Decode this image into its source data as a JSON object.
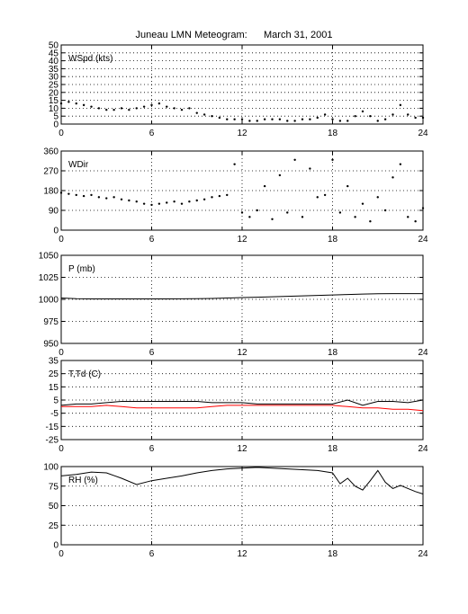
{
  "figure": {
    "title_left": "Juneau LMN Meteogram:",
    "title_right": "March 31, 2001"
  },
  "chart_data": [
    {
      "type": "scatter",
      "panel_label": "WSpd (kts)",
      "x": [
        0,
        0.5,
        1,
        1.5,
        2,
        2.5,
        3,
        3.5,
        4,
        4.5,
        5,
        5.5,
        6,
        6.5,
        7,
        7.5,
        8,
        8.5,
        9,
        9.5,
        10,
        10.5,
        11,
        11.5,
        12,
        12.5,
        13,
        13.5,
        14,
        14.5,
        15,
        15.5,
        16,
        16.5,
        17,
        17.5,
        18,
        18.5,
        19,
        19.5,
        20,
        20.5,
        21,
        21.5,
        22,
        22.5,
        23,
        23.5,
        24
      ],
      "series": [
        {
          "values": [
            13,
            14,
            13,
            12,
            11,
            10,
            9,
            9,
            10,
            9,
            10,
            11,
            12,
            13,
            11,
            10,
            9,
            10,
            7,
            6,
            5,
            4,
            3,
            3,
            3,
            2,
            2,
            3,
            3,
            3,
            2,
            2,
            3,
            3,
            4,
            6,
            3,
            2,
            2,
            5,
            8,
            5,
            2,
            3,
            6,
            12,
            6,
            4,
            4
          ],
          "color": "#000000"
        }
      ],
      "xlim": [
        0,
        24
      ],
      "ylim": [
        0,
        50
      ],
      "xticks": [
        "0",
        "6",
        "12",
        "18",
        "24"
      ],
      "yticks": [
        "0",
        "5",
        "10",
        "15",
        "20",
        "25",
        "30",
        "35",
        "40",
        "45",
        "50"
      ],
      "grid": true
    },
    {
      "type": "scatter",
      "panel_label": "WDir",
      "x": [
        0,
        0.5,
        1,
        1.5,
        2,
        2.5,
        3,
        3.5,
        4,
        4.5,
        5,
        5.5,
        6,
        6.5,
        7,
        7.5,
        8,
        8.5,
        9,
        9.5,
        10,
        10.5,
        11,
        11.5,
        12,
        12.5,
        13,
        13.5,
        14,
        14.5,
        15,
        15.5,
        16,
        16.5,
        17,
        17.5,
        18,
        18.5,
        19,
        19.5,
        20,
        20.5,
        21,
        21.5,
        22,
        22.5,
        23,
        23.5,
        24
      ],
      "series": [
        {
          "values": [
            170,
            165,
            160,
            155,
            160,
            150,
            145,
            150,
            140,
            135,
            130,
            120,
            115,
            120,
            125,
            130,
            120,
            130,
            135,
            140,
            150,
            155,
            160,
            300,
            80,
            60,
            90,
            200,
            50,
            250,
            80,
            320,
            60,
            280,
            150,
            160,
            320,
            80,
            200,
            60,
            120,
            40,
            150,
            90,
            240,
            300,
            60,
            40,
            100
          ],
          "color": "#000000"
        }
      ],
      "xlim": [
        0,
        24
      ],
      "ylim": [
        0,
        360
      ],
      "xticks": [
        "0",
        "6",
        "12",
        "18",
        "24"
      ],
      "yticks": [
        "0",
        "90",
        "180",
        "270",
        "360"
      ],
      "grid": true
    },
    {
      "type": "line",
      "panel_label": "P (mb)",
      "x": [
        0,
        1,
        2,
        3,
        4,
        5,
        6,
        7,
        8,
        9,
        10,
        11,
        12,
        13,
        14,
        15,
        16,
        17,
        18,
        19,
        20,
        21,
        22,
        23,
        24
      ],
      "series": [
        {
          "values": [
            1001.5,
            1000.8,
            1000.5,
            1000.5,
            1000.5,
            1000.5,
            1000.5,
            1000.5,
            1000.6,
            1000.7,
            1001,
            1001.5,
            1002,
            1002.5,
            1003,
            1003.5,
            1004,
            1004.5,
            1005,
            1005.5,
            1006,
            1006.3,
            1006.5,
            1006.5,
            1006.5
          ],
          "color": "#000000"
        }
      ],
      "xlim": [
        0,
        24
      ],
      "ylim": [
        950,
        1050
      ],
      "xticks": [
        "0",
        "6",
        "12",
        "18",
        "24"
      ],
      "yticks": [
        "950",
        "975",
        "1000",
        "1025",
        "1050"
      ],
      "grid": true
    },
    {
      "type": "line",
      "panel_label": "T,Td (C)",
      "x": [
        0,
        1,
        2,
        3,
        4,
        5,
        6,
        7,
        8,
        9,
        10,
        11,
        12,
        13,
        14,
        15,
        16,
        17,
        18,
        19,
        20,
        21,
        22,
        23,
        24
      ],
      "series": [
        {
          "values": [
            1,
            2,
            2,
            3,
            4,
            4,
            4,
            4,
            4,
            4,
            3,
            3,
            3,
            2,
            2,
            2,
            2,
            2,
            2,
            5,
            1,
            4,
            4,
            3,
            5
          ],
          "color": "#000000"
        },
        {
          "values": [
            0,
            0,
            0,
            1,
            0,
            -1,
            -1,
            -1,
            -1,
            -1,
            0,
            1,
            1,
            1,
            1,
            1,
            1,
            1,
            1,
            0,
            -1,
            -1,
            -2,
            -2,
            -3
          ],
          "color": "#ff0000"
        }
      ],
      "xlim": [
        0,
        24
      ],
      "ylim": [
        -25,
        35
      ],
      "xticks": [
        "0",
        "6",
        "12",
        "18",
        "24"
      ],
      "yticks": [
        "-25",
        "-15",
        "-5",
        "5",
        "15",
        "25",
        "35"
      ],
      "grid": true
    },
    {
      "type": "line",
      "panel_label": "RH (%)",
      "x": [
        0,
        1,
        2,
        3,
        4,
        5,
        6,
        7,
        8,
        9,
        10,
        11,
        12,
        13,
        14,
        15,
        16,
        17,
        18,
        18.5,
        19,
        19.5,
        20,
        20.5,
        21,
        21.5,
        22,
        22.5,
        23,
        23.5,
        24
      ],
      "series": [
        {
          "values": [
            88,
            90,
            93,
            92,
            85,
            77,
            82,
            85,
            88,
            92,
            95,
            97,
            98,
            99,
            98,
            97,
            96,
            95,
            92,
            78,
            85,
            75,
            70,
            82,
            95,
            80,
            72,
            76,
            72,
            68,
            65
          ],
          "color": "#000000"
        }
      ],
      "xlim": [
        0,
        24
      ],
      "ylim": [
        0,
        100
      ],
      "xticks": [
        "0",
        "6",
        "12",
        "18",
        "24"
      ],
      "yticks": [
        "0",
        "25",
        "50",
        "75",
        "100"
      ],
      "grid": true
    }
  ]
}
